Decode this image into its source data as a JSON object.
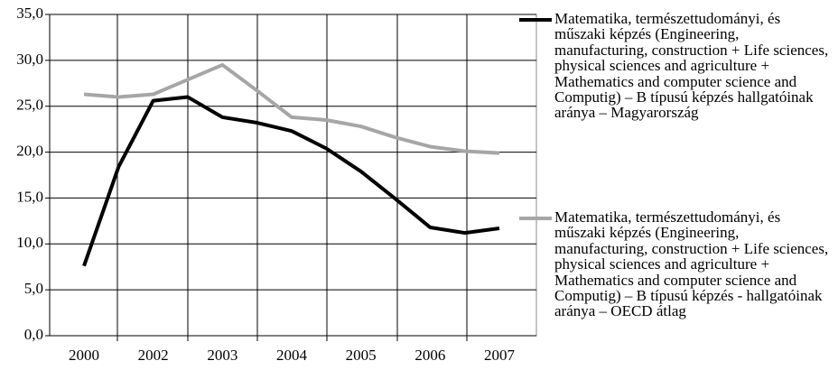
{
  "chart_data": {
    "type": "line",
    "categories": [
      "2000",
      null,
      "2002",
      null,
      "2003",
      null,
      "2004",
      null,
      "2005",
      null,
      "2006",
      null,
      "2007"
    ],
    "series": [
      {
        "name": "Matematika, természettudományi, és műszaki képzés (Engineering, manufacturing, construction + Life sciences, physical sciences  and agriculture + Mathematics and computer science and Computig) – B típusú képzés hallgatóinak aránya – Magyarország",
        "color": "#000000",
        "values": [
          7.6,
          18.4,
          25.6,
          26.0,
          23.8,
          23.2,
          22.3,
          20.4,
          17.9,
          14.9,
          11.8,
          11.2,
          11.7
        ]
      },
      {
        "name": "Matematika, természettudományi, és műszaki képzés (Engineering, manufacturing, construction + Life sciences, physical sciences  and agriculture + Mathematics and computer science and Computig) – B típusú képzés - hallgatóinak aránya – OECD átlag",
        "color": "#a6a6a6",
        "values": [
          26.3,
          26.0,
          26.3,
          27.9,
          29.5,
          26.7,
          23.8,
          23.5,
          22.8,
          21.6,
          20.6,
          20.1,
          19.9
        ]
      }
    ],
    "ylim": [
      0,
      35
    ],
    "yticks": [
      {
        "value": 0,
        "label": "0,0"
      },
      {
        "value": 5,
        "label": "5,0"
      },
      {
        "value": 10,
        "label": "10,0"
      },
      {
        "value": 15,
        "label": "15,0"
      },
      {
        "value": 20,
        "label": "20,0"
      },
      {
        "value": 25,
        "label": "25,0"
      },
      {
        "value": 30,
        "label": "30,0"
      },
      {
        "value": 35,
        "label": "35,0"
      }
    ],
    "grid": true,
    "legend": "right"
  }
}
